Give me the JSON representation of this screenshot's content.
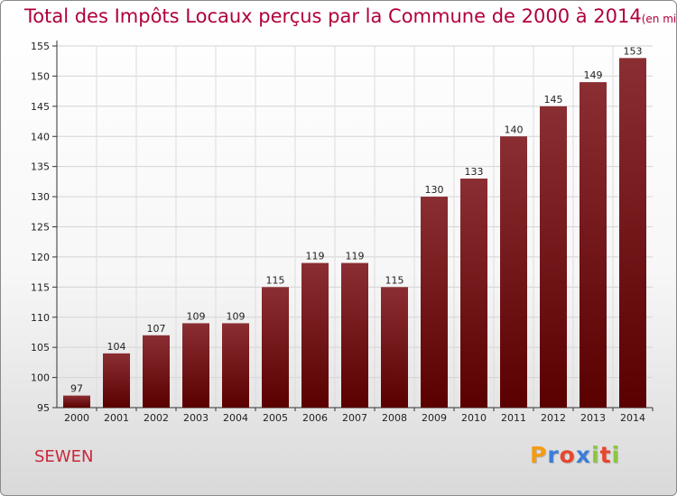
{
  "header": {
    "title": "Total des Impôts Locaux perçus par la Commune de 2000 à 2014",
    "unit": "(en milliers d'€)"
  },
  "commune": "SEWEN",
  "logo": {
    "letters": [
      "P",
      "r",
      "o",
      "x",
      "i",
      "t",
      "i"
    ],
    "colors": [
      "#f39c12",
      "#3b7dd8",
      "#e8452c",
      "#3b7dd8",
      "#8dc63f",
      "#e8452c",
      "#8dc63f"
    ]
  },
  "chart_data": {
    "type": "bar",
    "title": "Total des Impôts Locaux perçus par la Commune de 2000 à 2014",
    "categories": [
      "2000",
      "2001",
      "2002",
      "2003",
      "2004",
      "2005",
      "2006",
      "2007",
      "2008",
      "2009",
      "2010",
      "2011",
      "2012",
      "2013",
      "2014"
    ],
    "values": [
      97,
      104,
      107,
      109,
      109,
      115,
      119,
      119,
      115,
      130,
      133,
      140,
      145,
      149,
      153
    ],
    "ylim": [
      95,
      155
    ],
    "yticks": [
      95,
      100,
      105,
      110,
      115,
      120,
      125,
      130,
      135,
      140,
      145,
      150,
      155
    ],
    "grid": true,
    "bar_color_top": "#8b2e33",
    "bar_color_bottom": "#5a0000"
  }
}
